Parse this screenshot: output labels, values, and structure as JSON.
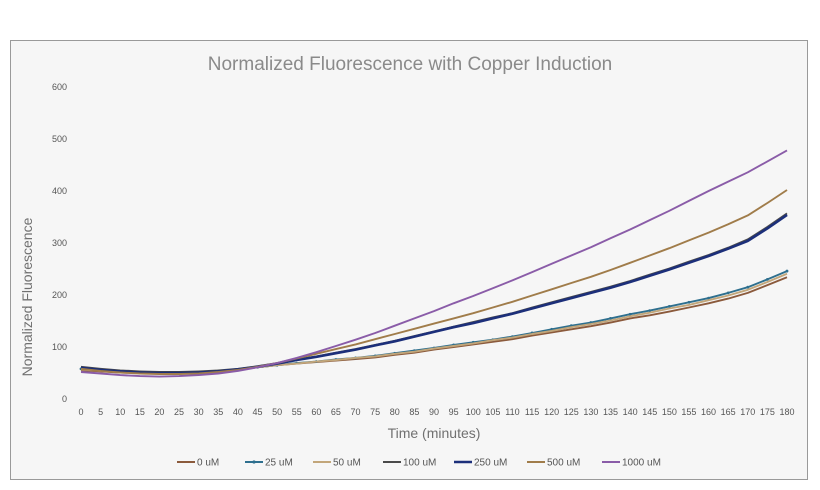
{
  "chart_data": {
    "type": "line",
    "title": "Normalized Fluorescence with Copper Induction",
    "xlabel": "Time (minutes)",
    "ylabel": "Normalized  Fluorescence",
    "x": [
      0,
      5,
      10,
      15,
      20,
      25,
      30,
      35,
      40,
      45,
      50,
      55,
      60,
      65,
      70,
      75,
      80,
      85,
      90,
      95,
      100,
      105,
      110,
      115,
      120,
      125,
      130,
      135,
      140,
      145,
      150,
      155,
      160,
      165,
      170,
      175,
      180
    ],
    "x_tick_labels": [
      "0",
      "5",
      "10",
      "15",
      "20",
      "25",
      "30",
      "35",
      "40",
      "45",
      "50",
      "55",
      "60",
      "65",
      "70",
      "75",
      "80",
      "85",
      "90",
      "95",
      "100",
      "105",
      "110",
      "115",
      "120",
      "125",
      "130",
      "135",
      "140",
      "145",
      "150",
      "155",
      "160",
      "165",
      "170",
      "175",
      "180"
    ],
    "ylim": [
      0,
      600
    ],
    "y_ticks": [
      0,
      100,
      200,
      300,
      400,
      500,
      600
    ],
    "y_tick_labels": [
      "0",
      "100",
      "200",
      "300",
      "400",
      "500",
      "600"
    ],
    "grid": false,
    "legend_position": "bottom",
    "series": [
      {
        "name": "0 uM",
        "color": "#8b5a3c",
        "values": [
          55,
          53,
          51,
          50,
          49,
          50,
          51,
          53,
          57,
          61,
          65,
          68,
          71,
          74,
          77,
          80,
          85,
          89,
          95,
          100,
          105,
          110,
          115,
          122,
          128,
          134,
          140,
          147,
          155,
          161,
          168,
          176,
          184,
          193,
          204,
          219,
          234
        ]
      },
      {
        "name": "25 uM",
        "color": "#2e6f8e",
        "values": [
          58,
          55,
          53,
          52,
          51,
          51,
          52,
          54,
          57,
          61,
          65,
          69,
          72,
          76,
          79,
          83,
          88,
          93,
          98,
          104,
          109,
          114,
          120,
          127,
          134,
          141,
          147,
          155,
          163,
          170,
          178,
          186,
          194,
          204,
          215,
          230,
          246
        ]
      },
      {
        "name": "50 uM",
        "color": "#c2a67a",
        "values": [
          57,
          54,
          52,
          51,
          50,
          50,
          51,
          53,
          57,
          61,
          65,
          68,
          72,
          75,
          79,
          82,
          87,
          91,
          97,
          102,
          107,
          113,
          118,
          125,
          131,
          138,
          144,
          151,
          159,
          166,
          174,
          181,
          190,
          199,
          210,
          225,
          241
        ]
      },
      {
        "name": "100 uM",
        "color": "#4a4a4a",
        "values": [
          62,
          58,
          55,
          53,
          52,
          52,
          53,
          55,
          58,
          63,
          69,
          76,
          82,
          89,
          96,
          104,
          112,
          121,
          130,
          139,
          148,
          157,
          165,
          176,
          186,
          196,
          206,
          216,
          227,
          239,
          251,
          264,
          277,
          291,
          307,
          331,
          357
        ]
      },
      {
        "name": "250 uM",
        "color": "#1c2f7a",
        "values": [
          60,
          56,
          53,
          51,
          50,
          50,
          51,
          53,
          57,
          62,
          68,
          75,
          81,
          88,
          95,
          103,
          111,
          120,
          129,
          138,
          146,
          155,
          164,
          174,
          184,
          194,
          204,
          214,
          225,
          237,
          249,
          262,
          275,
          289,
          304,
          328,
          354
        ]
      },
      {
        "name": "500 uM",
        "color": "#a07c4a",
        "values": [
          58,
          54,
          51,
          49,
          48,
          48,
          49,
          52,
          56,
          62,
          69,
          78,
          87,
          96,
          105,
          115,
          125,
          135,
          145,
          155,
          165,
          176,
          187,
          199,
          211,
          223,
          235,
          248,
          262,
          276,
          290,
          305,
          320,
          336,
          353,
          377,
          402
        ]
      },
      {
        "name": "1000 uM",
        "color": "#8a5ca8",
        "values": [
          52,
          49,
          46,
          44,
          43,
          44,
          46,
          49,
          54,
          61,
          69,
          79,
          90,
          102,
          114,
          127,
          141,
          155,
          169,
          184,
          198,
          213,
          228,
          244,
          260,
          276,
          292,
          309,
          326,
          344,
          362,
          381,
          400,
          418,
          436,
          457,
          478
        ]
      }
    ]
  }
}
